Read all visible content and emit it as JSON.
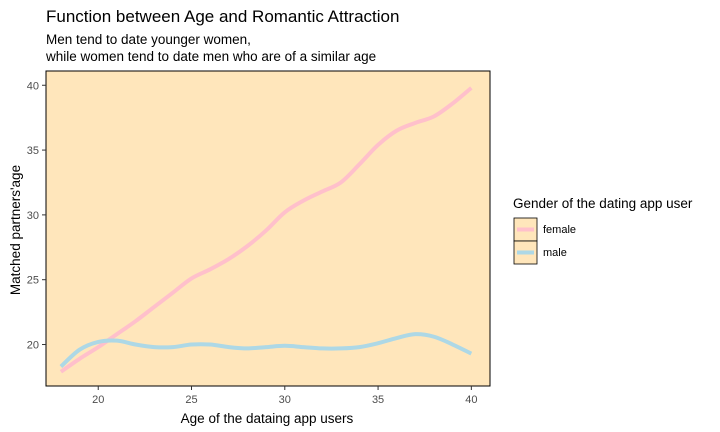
{
  "chart_data": {
    "type": "line",
    "title": "Function between Age and Romantic Attraction",
    "subtitle_lines": [
      "Men tend to date younger women,",
      "while women tend to date men who are of a similar age"
    ],
    "xlabel": "Age of the dataing app users",
    "ylabel": "Matched partners'age",
    "xlim": [
      17.2,
      41
    ],
    "ylim": [
      16.8,
      41.1
    ],
    "xticks": [
      20,
      25,
      30,
      35,
      40
    ],
    "yticks": [
      20,
      25,
      30,
      35,
      40
    ],
    "grid": false,
    "legend": {
      "title": "Gender of the dating app user",
      "position": "right",
      "entries": [
        "female",
        "male"
      ]
    },
    "series": [
      {
        "name": "female",
        "color": "#ffc0cb",
        "x": [
          18,
          19,
          20,
          21,
          22,
          23,
          24,
          25,
          26,
          27,
          28,
          29,
          30,
          31,
          32,
          33,
          34,
          35,
          36,
          37,
          38,
          39,
          40
        ],
        "y": [
          17.9,
          18.9,
          19.8,
          20.8,
          21.8,
          22.9,
          24.0,
          25.1,
          25.8,
          26.6,
          27.6,
          28.8,
          30.2,
          31.1,
          31.8,
          32.5,
          33.9,
          35.4,
          36.5,
          37.1,
          37.6,
          38.6,
          39.8
        ]
      },
      {
        "name": "male",
        "color": "#add8e6",
        "x": [
          18,
          19,
          20,
          21,
          22,
          23,
          24,
          25,
          26,
          27,
          28,
          29,
          30,
          31,
          32,
          33,
          34,
          35,
          36,
          37,
          38,
          39,
          40
        ],
        "y": [
          18.3,
          19.6,
          20.2,
          20.3,
          20.0,
          19.8,
          19.8,
          20.0,
          20.0,
          19.8,
          19.7,
          19.8,
          19.9,
          19.8,
          19.7,
          19.7,
          19.8,
          20.1,
          20.5,
          20.8,
          20.6,
          20.0,
          19.3
        ]
      }
    ],
    "colors": {
      "panel": "#ffe6bb",
      "axis": "#000000",
      "tick_text": "#4d4d4d"
    }
  }
}
